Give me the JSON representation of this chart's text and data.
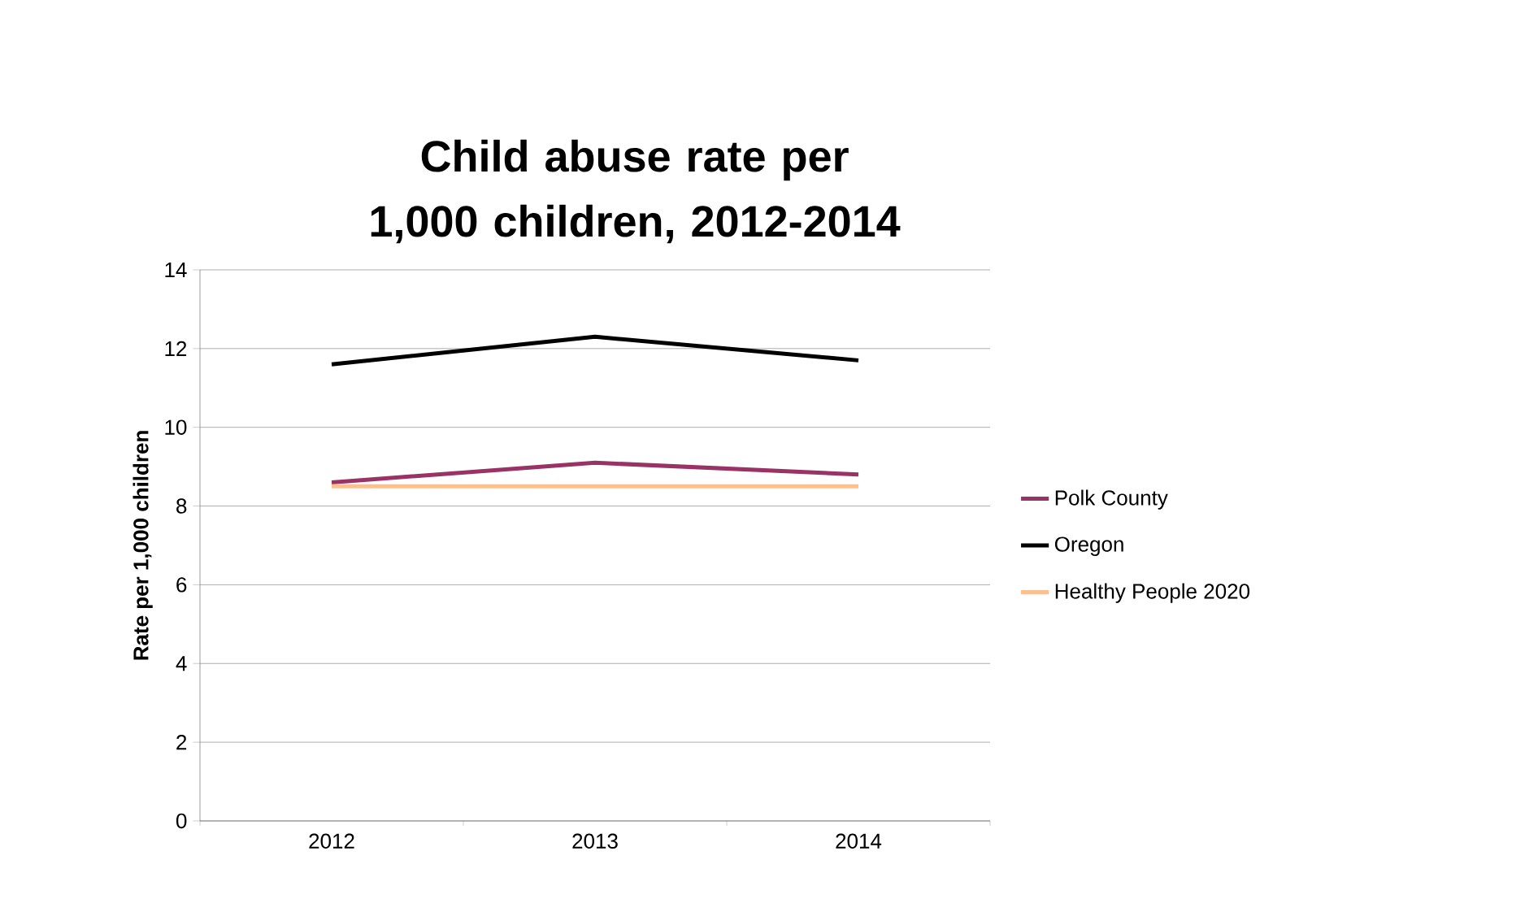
{
  "chart_data": {
    "type": "line",
    "title": "Child abuse rate per 1,000 children, 2012-2014",
    "ylabel": "Rate per 1,000 children",
    "categories": [
      "2012",
      "2013",
      "2014"
    ],
    "series": [
      {
        "name": "Polk County",
        "color": "#993366",
        "values": [
          8.6,
          9.1,
          8.8
        ]
      },
      {
        "name": "Oregon",
        "color": "#000000",
        "values": [
          11.6,
          12.3,
          11.7
        ]
      },
      {
        "name": "Healthy People 2020",
        "color": "#fac090",
        "values": [
          8.5,
          8.5,
          8.5
        ]
      }
    ],
    "ylim": [
      0,
      14
    ],
    "yticks": [
      0,
      2,
      4,
      6,
      8,
      10,
      12,
      14
    ],
    "grid": "y",
    "legend": "right",
    "marker": "none",
    "line_style": "solid"
  }
}
